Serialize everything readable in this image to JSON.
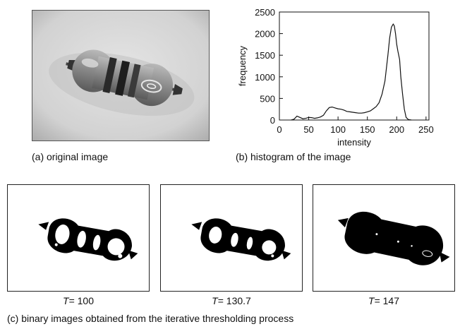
{
  "figure": {
    "panel_a": {
      "caption": "(a) original image"
    },
    "panel_b": {
      "caption": "(b) histogram of the image"
    },
    "panel_c": {
      "caption": "(c) binary images obtained from the iterative thresholding process",
      "images": [
        {
          "var": "T",
          "value": "= 100"
        },
        {
          "var": "T",
          "value": "= 130.7"
        },
        {
          "var": "T",
          "value": "= 147"
        }
      ]
    }
  },
  "chart_data": {
    "type": "line",
    "title": "",
    "xlabel": "intensity",
    "ylabel": "frequency",
    "xlim": [
      0,
      255
    ],
    "ylim": [
      0,
      2500
    ],
    "xticks": [
      0,
      50,
      100,
      150,
      200,
      250
    ],
    "yticks": [
      0,
      500,
      1000,
      1500,
      2000,
      2500
    ],
    "grid": false,
    "series": [
      {
        "x": [
          20,
          25,
          30,
          35,
          40,
          45,
          50,
          55,
          60,
          65,
          70,
          75,
          80,
          85,
          90,
          95,
          100,
          105,
          110,
          115,
          120,
          125,
          130,
          135,
          140,
          145,
          150,
          155,
          160,
          165,
          170,
          175,
          180,
          185,
          188,
          191,
          194,
          196,
          198,
          200,
          202,
          205,
          207,
          210,
          213,
          216,
          220,
          225
        ],
        "y": [
          0,
          20,
          90,
          60,
          30,
          40,
          60,
          55,
          40,
          50,
          70,
          110,
          210,
          290,
          300,
          280,
          260,
          250,
          230,
          200,
          190,
          180,
          170,
          160,
          160,
          170,
          190,
          210,
          260,
          310,
          400,
          600,
          900,
          1500,
          1900,
          2150,
          2220,
          2180,
          2000,
          1750,
          1600,
          1400,
          1000,
          600,
          250,
          60,
          10,
          0
        ]
      }
    ]
  }
}
